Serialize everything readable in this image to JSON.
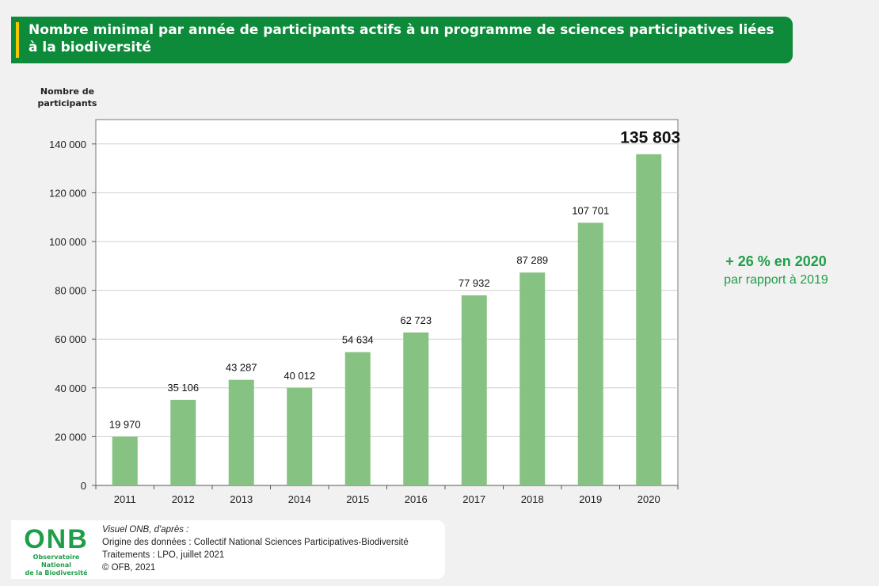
{
  "header": {
    "title": "Nombre minimal par année de participants actifs à un programme de sciences participatives liées à la biodiversité"
  },
  "chart_data": {
    "type": "bar",
    "categories": [
      "2011",
      "2012",
      "2013",
      "2014",
      "2015",
      "2016",
      "2017",
      "2018",
      "2019",
      "2020"
    ],
    "values": [
      19970,
      35106,
      43287,
      40012,
      54634,
      62723,
      77932,
      87289,
      107701,
      135803
    ],
    "value_labels": [
      "19 970",
      "35 106",
      "43 287",
      "40 012",
      "54 634",
      "62 723",
      "77 932",
      "87 289",
      "107 701",
      "135 803"
    ],
    "ylabel": "Nombre de participants",
    "ylim": [
      0,
      150000
    ],
    "y_ticks": [
      0,
      20000,
      40000,
      60000,
      80000,
      100000,
      120000,
      140000
    ],
    "y_tick_labels": [
      "0",
      "20 000",
      "40 000",
      "60 000",
      "80 000",
      "100 000",
      "120 000",
      "140 000"
    ],
    "grid": true,
    "bar_color": "#86c282",
    "highlight_last_label": true
  },
  "annotation": {
    "main": "+ 26 % en 2020",
    "sub": "par rapport à 2019",
    "color": "#1f9e4a"
  },
  "footer": {
    "logo_text": "ONB",
    "logo_line1": "Observatoire National",
    "logo_line2": "de la Biodiversité",
    "source_intro": "Visuel ONB, d'après :",
    "source_data": "Origine des données : Collectif National Sciences Participatives-Biodiversité",
    "source_processing": "Traitements : LPO, juillet 2021",
    "copyright": "© OFB, 2021"
  },
  "colors": {
    "title_bar": "#0e8a3b",
    "title_accent": "#f5c800",
    "logo_green": "#1f9e4a"
  }
}
